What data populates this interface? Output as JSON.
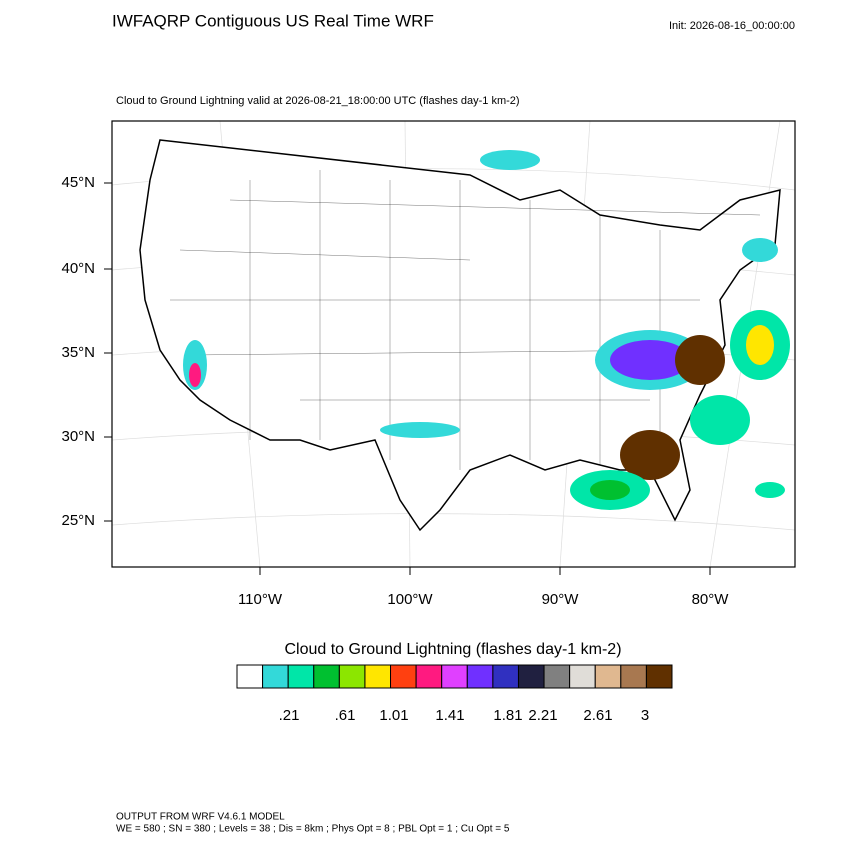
{
  "header": {
    "title": "IWFAQRP Contiguous US Real Time WRF",
    "init": "Init: 2026-08-16_00:00:00"
  },
  "map": {
    "subtitle": "Cloud to Ground Lightning valid at 2026-08-21_18:00:00 UTC   (flashes day-1 km-2)",
    "lat_labels": [
      "45°N",
      "40°N",
      "35°N",
      "30°N",
      "25°N"
    ],
    "lon_labels": [
      "110°W",
      "100°W",
      "90°W",
      "80°W"
    ]
  },
  "colorbar": {
    "title": "Cloud to Ground Lightning  (flashes day-1 km-2)",
    "colors": [
      "#ffffff",
      "#33d9d9",
      "#00e6a8",
      "#00c030",
      "#8ce600",
      "#ffe600",
      "#ff4010",
      "#ff1a80",
      "#e040ff",
      "#7030ff",
      "#3030c0",
      "#202040",
      "#808080",
      "#e0ddd8",
      "#e0b890",
      "#a87850",
      "#603000"
    ],
    "labels": [
      ".21",
      ".61",
      "1.01",
      "1.41",
      "1.81",
      "2.21",
      "2.61",
      "3"
    ]
  },
  "footer": {
    "line1": "OUTPUT FROM WRF V4.6.1 MODEL",
    "line2": "WE = 580 ; SN = 380 ; Levels = 38 ; Dis = 8km ; Phys Opt = 8 ; PBL Opt = 1 ; Cu Opt = 5"
  }
}
